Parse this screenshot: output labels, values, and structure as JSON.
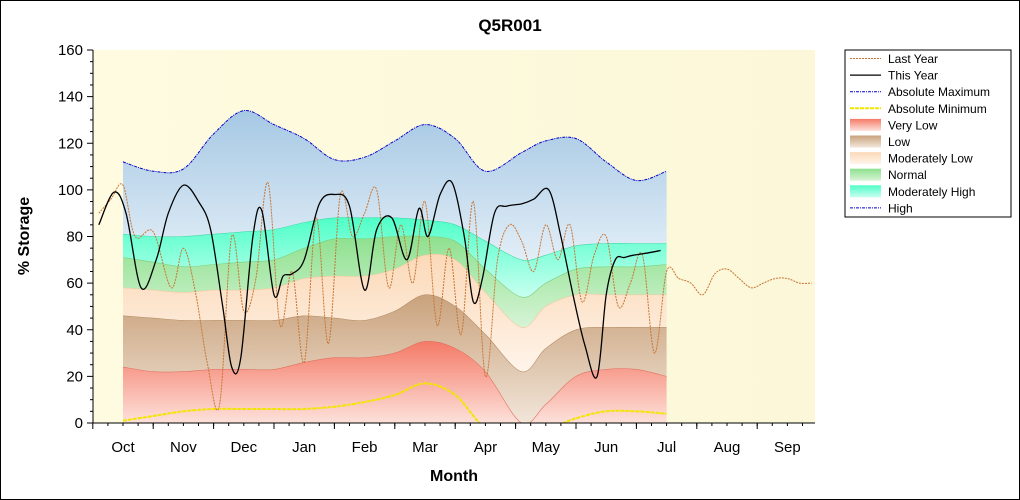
{
  "chart_data": {
    "type": "area",
    "title": "Q5R001",
    "xlabel": "Month",
    "ylabel": "% Storage",
    "ylim": [
      0,
      160
    ],
    "yticks": [
      0,
      20,
      40,
      60,
      80,
      100,
      120,
      140,
      160
    ],
    "months": [
      "Oct",
      "Nov",
      "Dec",
      "Jan",
      "Feb",
      "Mar",
      "Apr",
      "May",
      "Jun",
      "Jul",
      "Aug",
      "Sep"
    ],
    "grid": false,
    "legend_position": "right",
    "legend": [
      "Last Year",
      "This Year",
      "Absolute Maximum",
      "Absolute Minimum",
      "Very Low",
      "Low",
      "Moderately Low",
      "Normal",
      "Moderately High",
      "High"
    ],
    "colors": {
      "last_year": "#c87533",
      "this_year": "#000000",
      "abs_max": "#0000cc",
      "abs_min": "#ffff00",
      "very_low": "#f08070",
      "low": "#c8a882",
      "moderately_low": "#fbe1c8",
      "normal": "#8ee08e",
      "moderately_high": "#7fffd4",
      "high": "#a8cfe8"
    },
    "band_x": [
      0,
      0.5,
      1,
      1.5,
      2,
      2.5,
      3,
      3.5,
      4,
      4.5,
      5,
      5.5,
      6,
      6.5,
      7,
      7.5,
      8,
      8.5,
      9,
      9.5,
      10,
      10.5,
      11
    ],
    "bands": {
      "very_low_top": [
        24,
        22,
        22,
        23,
        23,
        23,
        26,
        28,
        28,
        30,
        35,
        32,
        22,
        0,
        8,
        20,
        23,
        23,
        20
      ],
      "low_top": [
        46,
        45,
        44,
        44,
        44,
        44,
        46,
        45,
        44,
        48,
        55,
        50,
        38,
        22,
        32,
        40,
        41,
        41,
        41
      ],
      "moderately_low_top": [
        58,
        57,
        56,
        57,
        57,
        58,
        62,
        63,
        63,
        66,
        72,
        70,
        56,
        41,
        50,
        55,
        55,
        55,
        55
      ],
      "normal_top": [
        71,
        69,
        67,
        68,
        69,
        70,
        75,
        79,
        79,
        80,
        80,
        78,
        66,
        54,
        60,
        66,
        67,
        67,
        68
      ],
      "moderately_high_top": [
        81,
        80,
        80,
        81,
        82,
        83,
        86,
        88,
        88,
        88,
        87,
        85,
        78,
        70,
        72,
        76,
        77,
        77,
        77
      ],
      "abs_max": [
        112,
        108,
        109,
        124,
        134,
        128,
        122,
        113,
        114,
        121,
        128,
        122,
        108,
        116,
        121,
        122,
        112,
        104,
        108
      ],
      "abs_min": [
        1,
        3,
        5,
        6,
        6,
        6,
        6,
        7,
        9,
        12,
        17,
        12,
        -2,
        -6,
        -3,
        2,
        5,
        5,
        4
      ]
    },
    "band_points_x": [
      0,
      0.5,
      1,
      1.5,
      2,
      2.5,
      3,
      3.5,
      4,
      4.5,
      5,
      5.5,
      6,
      6.6,
      7,
      7.5,
      8,
      8.5,
      9
    ],
    "this_year": {
      "x": [
        -0.4,
        -0.15,
        0.05,
        0.3,
        0.55,
        0.75,
        1.0,
        1.25,
        1.45,
        1.65,
        1.8,
        1.95,
        2.15,
        2.3,
        2.5,
        2.65,
        2.8,
        3.0,
        3.25,
        3.5,
        3.75,
        4.0,
        4.2,
        4.45,
        4.7,
        4.9,
        5.05,
        5.25,
        5.45,
        5.65,
        5.8,
        5.95,
        6.15,
        6.35,
        6.6,
        6.8,
        7.05,
        7.25,
        7.45,
        7.65,
        7.85,
        8.0,
        8.15,
        8.3,
        8.45,
        8.7,
        8.9
      ],
      "y": [
        85,
        99,
        90,
        58,
        70,
        90,
        102,
        95,
        83,
        50,
        24,
        28,
        80,
        91,
        55,
        63,
        64,
        70,
        94,
        98,
        93,
        57,
        83,
        88,
        70,
        92,
        80,
        98,
        103,
        80,
        52,
        62,
        90,
        93,
        94,
        96,
        100,
        80,
        55,
        33,
        20,
        55,
        70,
        71,
        72,
        73,
        74
      ]
    },
    "last_year": {
      "x": [
        -0.4,
        -0.2,
        0.0,
        0.2,
        0.5,
        0.8,
        1.0,
        1.2,
        1.4,
        1.6,
        1.8,
        2.0,
        2.2,
        2.4,
        2.6,
        2.8,
        3.0,
        3.2,
        3.4,
        3.6,
        3.8,
        4.0,
        4.2,
        4.4,
        4.6,
        4.8,
        5.0,
        5.2,
        5.4,
        5.6,
        5.8,
        6.0,
        6.2,
        6.4,
        6.6,
        6.8,
        7.0,
        7.2,
        7.4,
        7.6,
        7.8,
        8.0,
        8.2,
        8.4,
        8.6,
        8.8,
        9.0,
        9.2,
        9.4,
        9.6,
        9.8,
        10.0,
        10.2,
        10.4,
        10.6,
        10.8,
        11.0,
        11.2,
        11.4
      ],
      "y": [
        90,
        96,
        102,
        80,
        82,
        58,
        75,
        56,
        25,
        8,
        80,
        48,
        62,
        103,
        42,
        65,
        26,
        88,
        34,
        98,
        80,
        90,
        100,
        58,
        85,
        60,
        95,
        42,
        75,
        38,
        95,
        20,
        70,
        85,
        78,
        65,
        85,
        70,
        85,
        52,
        72,
        80,
        50,
        60,
        72,
        30,
        65,
        62,
        60,
        55,
        64,
        66,
        62,
        58,
        60,
        62,
        62,
        60,
        60
      ]
    }
  }
}
